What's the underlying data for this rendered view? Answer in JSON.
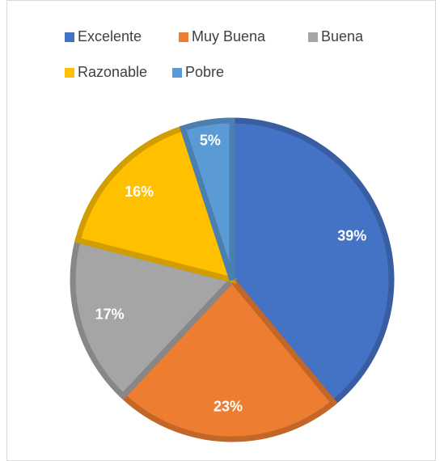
{
  "chart_data": {
    "type": "pie",
    "categories": [
      "Excelente",
      "Muy Buena",
      "Buena",
      "Razonable",
      "Pobre"
    ],
    "values": [
      39,
      23,
      17,
      16,
      5
    ],
    "value_labels": [
      "39%",
      "23%",
      "17%",
      "16%",
      "5%"
    ],
    "colors": [
      "#4472c4",
      "#ed7d31",
      "#a5a5a5",
      "#ffc000",
      "#5b9bd5"
    ],
    "legend": "top"
  }
}
